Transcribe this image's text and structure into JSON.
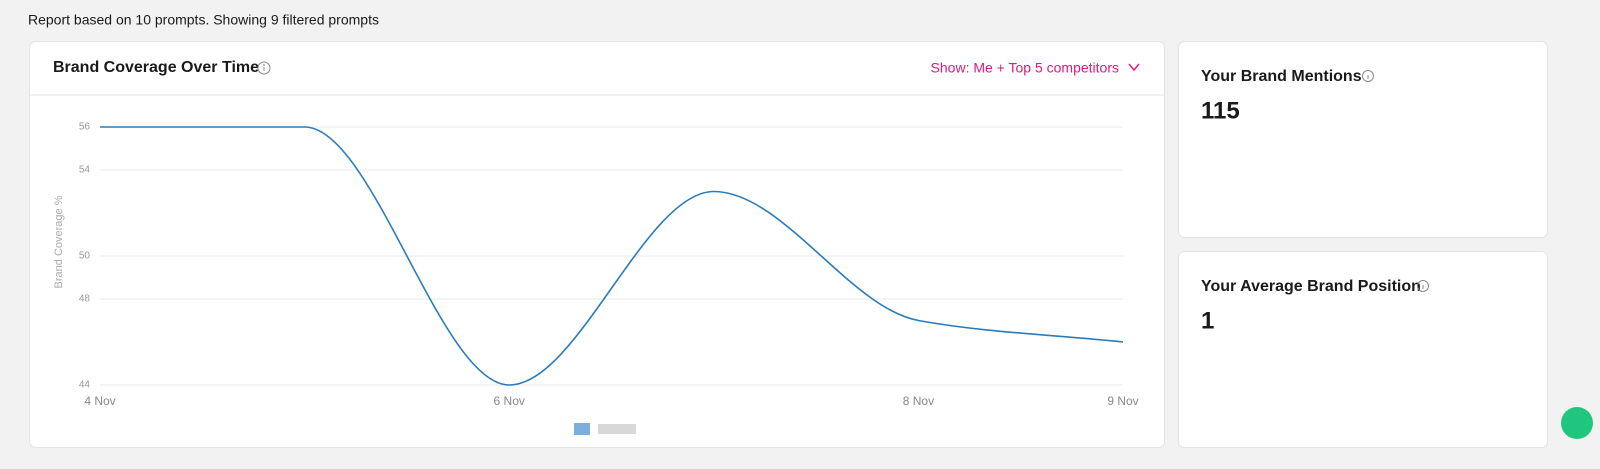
{
  "report_summary": "Report based on 10 prompts. Showing 9 filtered prompts",
  "chart_data": {
    "type": "line",
    "title": "Brand Coverage Over Time",
    "filter": "Show: Me + Top 5 competitors",
    "y_label": "Brand Coverage %",
    "categories": [
      "4 Nov",
      null,
      "6 Nov",
      null,
      "8 Nov",
      "9 Nov"
    ],
    "series": [
      {
        "color": "#2b7bba",
        "values": [
          56,
          56,
          44,
          53,
          47,
          46
        ]
      }
    ],
    "ylim": [
      44,
      56
    ],
    "yticks": [
      44,
      48,
      50,
      54,
      56
    ],
    "grid": true
  },
  "cards": [
    {
      "title": "Your Brand Mentions",
      "value": 115
    },
    {
      "title": "Your Average Brand Position",
      "value": 1
    }
  ]
}
